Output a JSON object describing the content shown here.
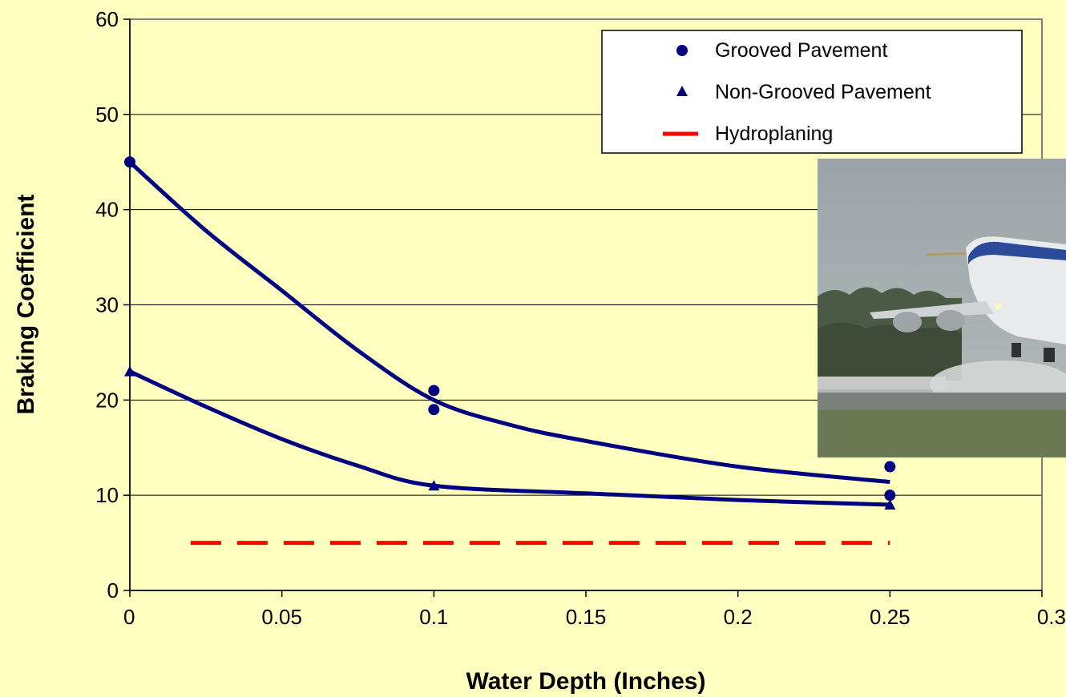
{
  "chart_data": {
    "type": "scatter",
    "title": "",
    "xlabel": "Water Depth (Inches)",
    "ylabel": "Braking Coefficient",
    "xlim": [
      0,
      0.3
    ],
    "ylim": [
      0,
      60
    ],
    "x_ticks": [
      0,
      0.05,
      0.1,
      0.15,
      0.2,
      0.25,
      0.3
    ],
    "x_tick_labels": [
      "0",
      "0.05",
      "0.1",
      "0.15",
      "0.2",
      "0.25",
      "0.3"
    ],
    "y_ticks": [
      0,
      10,
      20,
      30,
      40,
      50,
      60
    ],
    "y_tick_labels": [
      "0",
      "10",
      "20",
      "30",
      "40",
      "50",
      "60"
    ],
    "grid": "horizontal",
    "legend_position": "top-right",
    "series": [
      {
        "name": "Grooved Pavement",
        "marker": "circle",
        "color": "#000080",
        "points": [
          {
            "x": 0,
            "y": 45
          },
          {
            "x": 0.1,
            "y": 21
          },
          {
            "x": 0.1,
            "y": 19
          },
          {
            "x": 0.25,
            "y": 13
          },
          {
            "x": 0.25,
            "y": 10
          }
        ],
        "trend": [
          {
            "x": 0,
            "y": 45
          },
          {
            "x": 0.025,
            "y": 37.8
          },
          {
            "x": 0.05,
            "y": 31.5
          },
          {
            "x": 0.075,
            "y": 25.2
          },
          {
            "x": 0.1,
            "y": 20
          },
          {
            "x": 0.125,
            "y": 17.4
          },
          {
            "x": 0.15,
            "y": 15.7
          },
          {
            "x": 0.2,
            "y": 13
          },
          {
            "x": 0.25,
            "y": 11.4
          }
        ]
      },
      {
        "name": "Non-Grooved Pavement",
        "marker": "triangle",
        "color": "#000080",
        "points": [
          {
            "x": 0,
            "y": 23
          },
          {
            "x": 0.1,
            "y": 11
          },
          {
            "x": 0.25,
            "y": 9
          }
        ],
        "trend": [
          {
            "x": 0,
            "y": 23
          },
          {
            "x": 0.025,
            "y": 19.3
          },
          {
            "x": 0.05,
            "y": 15.9
          },
          {
            "x": 0.075,
            "y": 13.1
          },
          {
            "x": 0.1,
            "y": 11
          },
          {
            "x": 0.15,
            "y": 10.2
          },
          {
            "x": 0.2,
            "y": 9.5
          },
          {
            "x": 0.25,
            "y": 9
          }
        ]
      },
      {
        "name": "Hydroplaning",
        "marker": "dashed-line",
        "color": "#ff0000",
        "points": [
          {
            "x": 0.02,
            "y": 5
          },
          {
            "x": 0.25,
            "y": 5
          }
        ]
      }
    ],
    "inset_photo": "airplane-landing-on-wet-runway"
  }
}
